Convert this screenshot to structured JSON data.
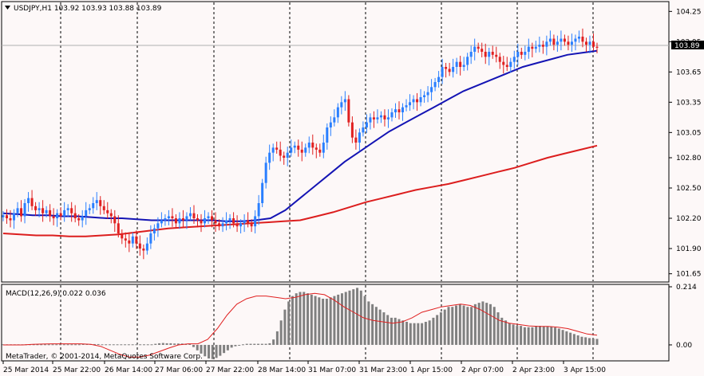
{
  "window": {
    "header_text": "USDJPY,H1  103.92 103.93 103.88 103.89",
    "menu_icon": "triangle-down-icon",
    "current_price_label": "103.89"
  },
  "macd": {
    "header_text": "MACD(12,26,9) 0.022 0.036",
    "copyright": "MetaTrader, © 2001-2014, MetaQuotes Software Corp."
  },
  "colors": {
    "background": "#fdf8f8",
    "bull_candle": "#2a7fff",
    "bear_candle": "#e02020",
    "fast_ma": "#1414b4",
    "slow_ma": "#dc1e1e",
    "macd_hist": "#808080",
    "signal_line": "#e02020",
    "grid_sep": "#000000"
  },
  "chart_data": [
    {
      "type": "candlestick",
      "symbol": "USDJPY",
      "timeframe": "H1",
      "ohlc": {
        "open": 103.92,
        "high": 103.93,
        "low": 103.88,
        "close": 103.89
      },
      "ylim": [
        101.6,
        104.3
      ],
      "y_ticks": [
        "104.25",
        "103.95",
        "103.65",
        "103.35",
        "103.05",
        "102.80",
        "102.50",
        "102.20",
        "101.90",
        "101.65"
      ],
      "x_ticks": [
        "25 Mar 2014",
        "25 Mar 22:00",
        "26 Mar 14:00",
        "27 Mar 06:00",
        "27 Mar 22:00",
        "28 Mar 14:00",
        "31 Mar 07:00",
        "31 Mar 23:00",
        "1 Apr 15:00",
        "2 Apr 07:00",
        "2 Apr 23:00",
        "3 Apr 15:00"
      ],
      "closes": [
        102.23,
        102.2,
        102.18,
        102.25,
        102.3,
        102.22,
        102.35,
        102.4,
        102.32,
        102.28,
        102.3,
        102.25,
        102.28,
        102.22,
        102.2,
        102.25,
        102.22,
        102.28,
        102.3,
        102.25,
        102.2,
        102.18,
        102.22,
        102.28,
        102.3,
        102.35,
        102.38,
        102.32,
        102.28,
        102.25,
        102.22,
        102.15,
        102.05,
        102.0,
        101.98,
        101.95,
        102.02,
        101.95,
        101.9,
        101.88,
        101.95,
        102.05,
        102.1,
        102.15,
        102.18,
        102.2,
        102.22,
        102.2,
        102.15,
        102.2,
        102.18,
        102.22,
        102.25,
        102.2,
        102.18,
        102.15,
        102.2,
        102.22,
        102.18,
        102.15,
        102.12,
        102.15,
        102.18,
        102.2,
        102.15,
        102.12,
        102.15,
        102.18,
        102.15,
        102.12,
        102.22,
        102.35,
        102.55,
        102.75,
        102.85,
        102.9,
        102.88,
        102.82,
        102.8,
        102.85,
        102.9,
        102.92,
        102.88,
        102.85,
        102.9,
        102.95,
        102.9,
        102.88,
        102.85,
        102.95,
        103.1,
        103.15,
        103.2,
        103.3,
        103.35,
        103.38,
        103.15,
        103.0,
        102.95,
        103.05,
        103.1,
        103.15,
        103.2,
        103.18,
        103.2,
        103.22,
        103.18,
        103.2,
        103.25,
        103.28,
        103.25,
        103.3,
        103.32,
        103.35,
        103.38,
        103.35,
        103.4,
        103.42,
        103.45,
        103.5,
        103.55,
        103.6,
        103.7,
        103.68,
        103.65,
        103.7,
        103.75,
        103.7,
        103.72,
        103.8,
        103.85,
        103.9,
        103.88,
        103.85,
        103.8,
        103.85,
        103.82,
        103.8,
        103.75,
        103.72,
        103.7,
        103.75,
        103.8,
        103.85,
        103.82,
        103.85,
        103.9,
        103.88,
        103.9,
        103.92,
        103.9,
        103.95,
        103.98,
        103.92,
        103.95,
        103.98,
        103.95,
        103.92,
        103.95,
        103.98,
        104.0,
        103.95,
        103.92,
        103.95,
        103.9,
        103.89
      ],
      "series": [
        {
          "type": "line",
          "values": [
            102.25,
            102.24,
            102.23,
            102.23,
            102.22,
            102.22,
            102.21,
            102.2,
            102.2,
            102.19,
            102.18,
            102.18,
            102.18,
            102.18,
            102.18,
            102.17,
            102.17,
            102.18,
            102.2,
            102.28,
            102.4,
            102.52,
            102.64,
            102.76,
            102.86,
            102.96,
            103.06,
            103.14,
            103.22,
            103.3,
            103.38,
            103.46,
            103.52,
            103.58,
            103.64,
            103.7,
            103.74,
            103.78,
            103.82,
            103.84,
            103.86
          ]
        },
        {
          "type": "line",
          "values": [
            102.05,
            102.04,
            102.03,
            102.03,
            102.02,
            102.02,
            102.03,
            102.04,
            102.06,
            102.08,
            102.1,
            102.11,
            102.12,
            102.13,
            102.14,
            102.15,
            102.16,
            102.17,
            102.18,
            102.22,
            102.26,
            102.31,
            102.36,
            102.4,
            102.44,
            102.48,
            102.51,
            102.54,
            102.58,
            102.62,
            102.66,
            102.7,
            102.75,
            102.8,
            102.84,
            102.88,
            102.92
          ]
        }
      ]
    },
    {
      "type": "bar",
      "indicator": "MACD",
      "params": [
        12,
        26,
        9
      ],
      "macd_value": 0.022,
      "signal_value": 0.036,
      "ylim": [
        -0.05,
        0.214
      ],
      "y_ticks": [
        "0.214",
        "0.00"
      ],
      "values": [
        0.002,
        0.002,
        0.002,
        0.002,
        0.002,
        0.002,
        0.002,
        0.002,
        0.002,
        0.002,
        0.002,
        0.002,
        0.002,
        0.002,
        0.002,
        0.002,
        0.002,
        0.002,
        0.002,
        0.002,
        0.002,
        0.003,
        0.004,
        0.003,
        0.003,
        0.003,
        0.002,
        0.002,
        0.002,
        0.002,
        0.002,
        0.002,
        0.002,
        0.002,
        0.002,
        0.002,
        0.002,
        0.002,
        0.002,
        0.002,
        0.004,
        0.006,
        0.007,
        0.006,
        0.006,
        0.005,
        0.005,
        0.005,
        0.004,
        0.004,
        -0.008,
        -0.02,
        -0.032,
        -0.042,
        -0.05,
        -0.052,
        -0.048,
        -0.04,
        -0.03,
        -0.02,
        -0.01,
        -0.005,
        -0.002,
        0.002,
        0.004,
        0.004,
        0.004,
        0.004,
        0.004,
        0.004,
        0.006,
        0.02,
        0.05,
        0.09,
        0.13,
        0.16,
        0.18,
        0.19,
        0.195,
        0.195,
        0.19,
        0.185,
        0.18,
        0.175,
        0.17,
        0.17,
        0.175,
        0.18,
        0.185,
        0.19,
        0.195,
        0.2,
        0.205,
        0.21,
        0.2,
        0.18,
        0.16,
        0.15,
        0.14,
        0.13,
        0.12,
        0.11,
        0.1,
        0.1,
        0.095,
        0.09,
        0.085,
        0.08,
        0.08,
        0.08,
        0.08,
        0.085,
        0.09,
        0.1,
        0.11,
        0.12,
        0.13,
        0.14,
        0.14,
        0.145,
        0.15,
        0.145,
        0.14,
        0.14,
        0.15,
        0.155,
        0.16,
        0.155,
        0.15,
        0.14,
        0.12,
        0.1,
        0.09,
        0.08,
        0.075,
        0.07,
        0.07,
        0.065,
        0.065,
        0.065,
        0.07,
        0.07,
        0.068,
        0.068,
        0.066,
        0.064,
        0.06,
        0.055,
        0.05,
        0.045,
        0.04,
        0.035,
        0.03,
        0.028,
        0.025,
        0.023,
        0.022
      ],
      "series": [
        {
          "type": "line",
          "values": [
            0.0,
            0.0,
            0.0,
            0.002,
            0.003,
            0.004,
            0.004,
            0.004,
            0.004,
            0.002,
            -0.005,
            -0.02,
            -0.035,
            -0.045,
            -0.045,
            -0.038,
            -0.025,
            -0.012,
            0.0,
            0.004,
            0.004,
            0.02,
            0.06,
            0.11,
            0.15,
            0.17,
            0.18,
            0.18,
            0.175,
            0.17,
            0.175,
            0.185,
            0.19,
            0.185,
            0.165,
            0.14,
            0.12,
            0.1,
            0.09,
            0.085,
            0.08,
            0.085,
            0.1,
            0.12,
            0.13,
            0.14,
            0.145,
            0.15,
            0.145,
            0.13,
            0.11,
            0.09,
            0.08,
            0.075,
            0.07,
            0.068,
            0.068,
            0.065,
            0.06,
            0.05,
            0.04,
            0.036
          ]
        }
      ]
    }
  ]
}
